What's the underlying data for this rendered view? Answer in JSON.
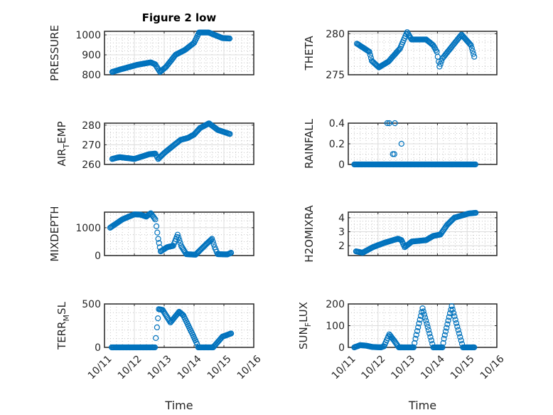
{
  "chart_data": {
    "type": "scatter",
    "title": "Figure 2 low",
    "marker_color": "#0072BD",
    "x_ticks": [
      "10/11",
      "10/12",
      "10/13",
      "10/14",
      "10/15",
      "10/16"
    ],
    "x_unit": "days since 10/11",
    "xlim": [
      0,
      5
    ],
    "xlabel": "Time",
    "grid": "major+minor",
    "panels": [
      {
        "name": "pressure",
        "ylabel": "PRESSURE",
        "ylim": [
          800,
          1018
        ],
        "yticks": [
          "800",
          "900",
          "1000"
        ],
        "ytick_values": [
          800,
          900,
          1000
        ],
        "minor": 20,
        "points": [
          [
            0.26,
            814
          ],
          [
            0.52,
            826
          ],
          [
            1.1,
            850
          ],
          [
            1.55,
            862
          ],
          [
            1.7,
            852
          ],
          [
            1.86,
            814
          ],
          [
            2.06,
            839
          ],
          [
            2.38,
            900
          ],
          [
            2.7,
            925
          ],
          [
            3.0,
            960
          ],
          [
            3.17,
            1012
          ],
          [
            3.49,
            1012
          ],
          [
            3.95,
            984
          ],
          [
            4.19,
            982
          ]
        ]
      },
      {
        "name": "theta",
        "ylabel": "THETA",
        "ylim": [
          275,
          280.3
        ],
        "yticks": [
          "275",
          "280"
        ],
        "ytick_values": [
          275,
          280
        ],
        "minor": 1,
        "points": [
          [
            0.29,
            278.8
          ],
          [
            0.71,
            277.8
          ],
          [
            0.79,
            276.7
          ],
          [
            1.03,
            275.9
          ],
          [
            1.35,
            276.6
          ],
          [
            1.74,
            278.2
          ],
          [
            1.98,
            280.2
          ],
          [
            2.13,
            279.3
          ],
          [
            2.62,
            279.3
          ],
          [
            2.86,
            278.6
          ],
          [
            2.98,
            277.8
          ],
          [
            3.07,
            276.0
          ],
          [
            3.17,
            277.0
          ],
          [
            3.81,
            279.9
          ],
          [
            4.13,
            278.6
          ],
          [
            4.24,
            277.2
          ]
        ]
      },
      {
        "name": "air-temp",
        "ylabel": "AIR_TEMP",
        "ylim": [
          260,
          281
        ],
        "yticks": [
          "260",
          "270",
          "280"
        ],
        "ytick_values": [
          260,
          270,
          280
        ],
        "minor": 2,
        "points": [
          [
            0.26,
            262.8
          ],
          [
            0.5,
            263.7
          ],
          [
            1.0,
            262.8
          ],
          [
            1.5,
            265.2
          ],
          [
            1.7,
            265.5
          ],
          [
            1.8,
            262.8
          ],
          [
            2.0,
            265.8
          ],
          [
            2.3,
            269.5
          ],
          [
            2.55,
            272.5
          ],
          [
            2.8,
            273.5
          ],
          [
            3.0,
            275.2
          ],
          [
            3.2,
            278.5
          ],
          [
            3.5,
            280.9
          ],
          [
            3.8,
            277.5
          ],
          [
            4.2,
            275.5
          ]
        ]
      },
      {
        "name": "rainfall",
        "ylabel": "RAINFALL",
        "ylim": [
          0,
          0.4
        ],
        "yticks": [
          "0",
          "0.2",
          "0.4"
        ],
        "ytick_values": [
          0,
          0.2,
          0.4
        ],
        "minor": 0.05,
        "baseline": {
          "value": 0,
          "x_range": [
            0.2,
            4.3
          ]
        },
        "points": [
          [
            1.31,
            0.4
          ],
          [
            1.38,
            0.4
          ],
          [
            1.57,
            0.4
          ],
          [
            1.5,
            0.1
          ],
          [
            1.55,
            0.1
          ],
          [
            1.79,
            0.2
          ]
        ],
        "interpolate": false
      },
      {
        "name": "mixdepth",
        "ylabel": "MIXDEPTH",
        "ylim": [
          0,
          1560
        ],
        "yticks": [
          "0",
          "1000"
        ],
        "ytick_values": [
          0,
          1000
        ],
        "minor": 250,
        "points": [
          [
            0.19,
            1000
          ],
          [
            0.6,
            1300
          ],
          [
            1.0,
            1480
          ],
          [
            1.2,
            1470
          ],
          [
            1.4,
            1400
          ],
          [
            1.55,
            1520
          ],
          [
            1.7,
            1300
          ],
          [
            1.74,
            1050
          ],
          [
            1.8,
            600
          ],
          [
            1.88,
            150
          ],
          [
            2.1,
            300
          ],
          [
            2.3,
            350
          ],
          [
            2.45,
            750
          ],
          [
            2.57,
            350
          ],
          [
            2.74,
            50
          ],
          [
            3.05,
            30
          ],
          [
            3.4,
            400
          ],
          [
            3.6,
            600
          ],
          [
            3.69,
            300
          ],
          [
            3.79,
            50
          ],
          [
            4.12,
            40
          ],
          [
            4.24,
            100
          ]
        ]
      },
      {
        "name": "h2omixra",
        "ylabel": "H2OMIXRA",
        "ylim": [
          1.3,
          4.4
        ],
        "yticks": [
          "2",
          "3",
          "4"
        ],
        "ytick_values": [
          2,
          3,
          4
        ],
        "minor": 0.25,
        "points": [
          [
            0.26,
            1.6
          ],
          [
            0.48,
            1.5
          ],
          [
            0.83,
            1.9
          ],
          [
            1.2,
            2.2
          ],
          [
            1.67,
            2.5
          ],
          [
            1.79,
            2.4
          ],
          [
            1.9,
            1.9
          ],
          [
            2.14,
            2.3
          ],
          [
            2.62,
            2.4
          ],
          [
            2.86,
            2.7
          ],
          [
            3.1,
            2.8
          ],
          [
            3.33,
            3.5
          ],
          [
            3.57,
            4.0
          ],
          [
            4.05,
            4.3
          ],
          [
            4.29,
            4.35
          ]
        ]
      },
      {
        "name": "terr-msl",
        "ylabel": "TERR_MSL",
        "ylim": [
          0,
          500
        ],
        "yticks": [
          "0",
          "500"
        ],
        "ytick_values": [
          0,
          500
        ],
        "minor": 100,
        "points": [
          [
            0.24,
            0
          ],
          [
            1.69,
            0
          ],
          [
            1.72,
            107
          ],
          [
            1.76,
            230
          ],
          [
            1.82,
            440
          ],
          [
            1.95,
            430
          ],
          [
            2.21,
            287
          ],
          [
            2.5,
            410
          ],
          [
            2.64,
            370
          ],
          [
            2.93,
            165
          ],
          [
            3.1,
            40
          ],
          [
            3.14,
            0
          ],
          [
            3.64,
            0
          ],
          [
            3.95,
            123
          ],
          [
            4.24,
            160
          ]
        ]
      },
      {
        "name": "sun-flux",
        "ylabel": "SUN_FLUX",
        "ylim": [
          0,
          200
        ],
        "yticks": [
          "0",
          "100",
          "200"
        ],
        "ytick_values": [
          0,
          100,
          200
        ],
        "minor": 40,
        "points": [
          [
            0.2,
            0
          ],
          [
            0.4,
            10
          ],
          [
            0.6,
            8
          ],
          [
            0.8,
            2
          ],
          [
            1.1,
            0
          ],
          [
            1.2,
            5
          ],
          [
            1.38,
            60
          ],
          [
            1.55,
            30
          ],
          [
            1.7,
            0
          ],
          [
            2.2,
            0
          ],
          [
            2.26,
            40
          ],
          [
            2.5,
            180
          ],
          [
            2.7,
            80
          ],
          [
            2.86,
            0
          ],
          [
            3.17,
            0
          ],
          [
            3.22,
            40
          ],
          [
            3.48,
            190
          ],
          [
            3.7,
            80
          ],
          [
            3.86,
            0
          ],
          [
            4.24,
            0
          ]
        ]
      }
    ]
  }
}
